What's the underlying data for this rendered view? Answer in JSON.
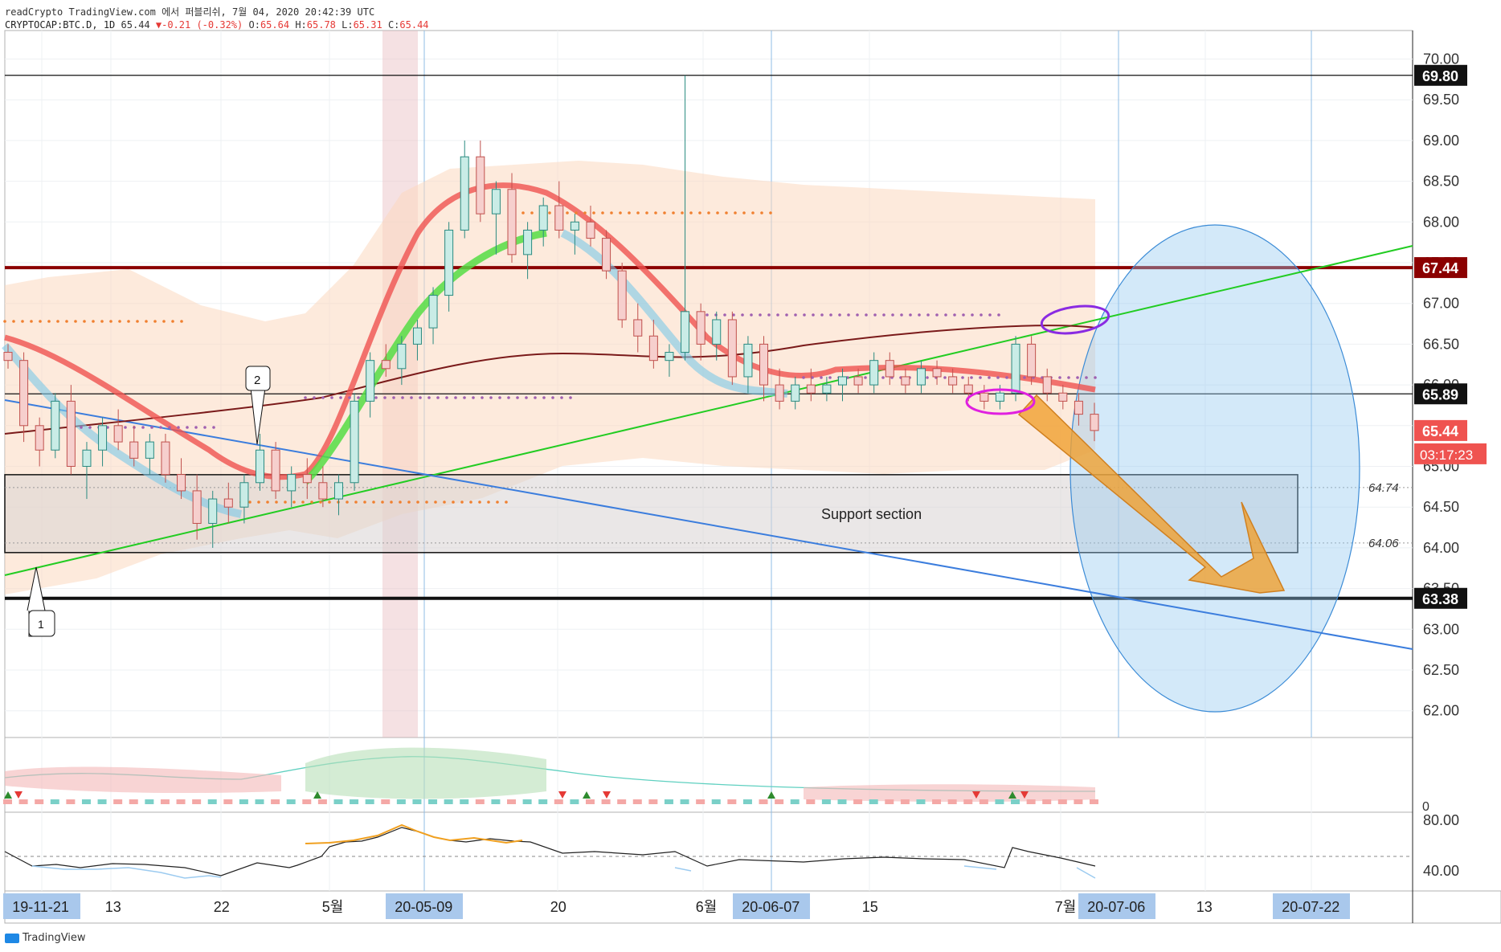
{
  "header": {
    "line1": "readCrypto TradingView.com 에서 퍼블리쉬, 7월 04, 2020 20:42:39 UTC",
    "symbol": "CRYPTOCAP:BTC.D, 1D",
    "last": "65.44",
    "change_arrow": "▼",
    "change": "-0.21 (-0.32%)",
    "o_label": "O:",
    "o": "65.64",
    "h_label": "H:",
    "h": "65.78",
    "l_label": "L:",
    "l": "65.31",
    "c_label": "C:",
    "c": "65.44"
  },
  "footer": {
    "brand": "TradingView"
  },
  "colors": {
    "up": "#26a69a",
    "down": "#ef5350",
    "support_line": "#8b0000",
    "uptrend": "#22cc22",
    "downtrend": "#3b7ddd",
    "arrow": "#f0a030",
    "ellipse": "#90c8f0",
    "purple": "#8a2be2",
    "magenta": "#e020e0"
  },
  "chart_data": {
    "type": "candlestick",
    "symbol": "CRYPTOCAP:BTC.D",
    "interval": "1D",
    "price_axis": {
      "range": [
        61.7,
        70.2
      ],
      "ticks": [
        "70.00",
        "69.50",
        "69.00",
        "68.50",
        "68.00",
        "67.50",
        "67.00",
        "66.50",
        "66.00",
        "65.50",
        "65.00",
        "64.50",
        "64.00",
        "63.50",
        "63.00",
        "62.50",
        "62.00"
      ],
      "labels": [
        {
          "value": 69.8,
          "text": "69.80",
          "style": "black"
        },
        {
          "value": 67.44,
          "text": "67.44",
          "style": "darkred"
        },
        {
          "value": 65.89,
          "text": "65.89",
          "style": "black"
        },
        {
          "value": 65.44,
          "text": "65.44",
          "style": "red"
        },
        {
          "value": 63.38,
          "text": "63.38",
          "style": "black"
        }
      ],
      "countdown": "03:17:23",
      "plain_labels": [
        {
          "value": 64.74,
          "text": "64.74"
        },
        {
          "value": 64.06,
          "text": "64.06"
        }
      ]
    },
    "time_axis": [
      {
        "text": "19-11-21",
        "highlight": true
      },
      {
        "text": "13",
        "highlight": false
      },
      {
        "text": "22",
        "highlight": false
      },
      {
        "text": "5월",
        "highlight": false
      },
      {
        "text": "20-05-09",
        "highlight": true
      },
      {
        "text": "20",
        "highlight": false
      },
      {
        "text": "6월",
        "highlight": false
      },
      {
        "text": "20-06-07",
        "highlight": true
      },
      {
        "text": "15",
        "highlight": false
      },
      {
        "text": "7월",
        "highlight": false
      },
      {
        "text": "20-07-06",
        "highlight": true
      },
      {
        "text": "13",
        "highlight": false
      },
      {
        "text": "20-07-22",
        "highlight": true
      }
    ],
    "candles": [
      [
        66.4,
        66.5,
        66.2,
        66.3
      ],
      [
        66.3,
        66.4,
        65.3,
        65.5
      ],
      [
        65.5,
        65.6,
        65.0,
        65.2
      ],
      [
        65.2,
        65.9,
        65.1,
        65.8
      ],
      [
        65.8,
        66.0,
        64.9,
        65.0
      ],
      [
        65.0,
        65.3,
        64.6,
        65.2
      ],
      [
        65.2,
        65.6,
        65.0,
        65.5
      ],
      [
        65.5,
        65.7,
        65.2,
        65.3
      ],
      [
        65.3,
        65.5,
        65.0,
        65.1
      ],
      [
        65.1,
        65.4,
        64.9,
        65.3
      ],
      [
        65.3,
        65.4,
        64.8,
        64.9
      ],
      [
        64.9,
        65.1,
        64.6,
        64.7
      ],
      [
        64.7,
        64.9,
        64.1,
        64.3
      ],
      [
        64.3,
        64.7,
        64.0,
        64.6
      ],
      [
        64.6,
        64.8,
        64.3,
        64.5
      ],
      [
        64.5,
        64.9,
        64.3,
        64.8
      ],
      [
        64.8,
        65.4,
        64.7,
        65.2
      ],
      [
        65.2,
        65.3,
        64.6,
        64.7
      ],
      [
        64.7,
        65.0,
        64.5,
        64.9
      ],
      [
        64.9,
        65.1,
        64.6,
        64.8
      ],
      [
        64.8,
        65.0,
        64.5,
        64.6
      ],
      [
        64.6,
        64.9,
        64.4,
        64.8
      ],
      [
        64.8,
        65.9,
        64.7,
        65.8
      ],
      [
        65.8,
        66.4,
        65.6,
        66.3
      ],
      [
        66.3,
        66.5,
        66.1,
        66.2
      ],
      [
        66.2,
        66.6,
        66.0,
        66.5
      ],
      [
        66.5,
        66.8,
        66.3,
        66.7
      ],
      [
        66.7,
        67.2,
        66.5,
        67.1
      ],
      [
        67.1,
        68.0,
        66.9,
        67.9
      ],
      [
        67.9,
        69.0,
        67.8,
        68.8
      ],
      [
        68.8,
        69.0,
        68.0,
        68.1
      ],
      [
        68.1,
        68.5,
        67.6,
        68.4
      ],
      [
        68.4,
        68.6,
        67.5,
        67.6
      ],
      [
        67.6,
        68.0,
        67.3,
        67.9
      ],
      [
        67.9,
        68.3,
        67.7,
        68.2
      ],
      [
        68.2,
        68.5,
        67.8,
        67.9
      ],
      [
        67.9,
        68.1,
        67.6,
        68.0
      ],
      [
        68.0,
        68.2,
        67.7,
        67.8
      ],
      [
        67.8,
        67.9,
        67.3,
        67.4
      ],
      [
        67.4,
        67.5,
        66.7,
        66.8
      ],
      [
        66.8,
        67.0,
        66.4,
        66.6
      ],
      [
        66.6,
        66.8,
        66.2,
        66.3
      ],
      [
        66.3,
        66.5,
        66.1,
        66.4
      ],
      [
        66.4,
        69.8,
        66.3,
        66.9
      ],
      [
        66.9,
        67.0,
        66.3,
        66.5
      ],
      [
        66.5,
        66.9,
        66.3,
        66.8
      ],
      [
        66.8,
        66.9,
        66.0,
        66.1
      ],
      [
        66.1,
        66.6,
        65.9,
        66.5
      ],
      [
        66.5,
        66.6,
        65.8,
        66.0
      ],
      [
        66.0,
        66.2,
        65.7,
        65.8
      ],
      [
        65.8,
        66.1,
        65.7,
        66.0
      ],
      [
        66.0,
        66.2,
        65.8,
        65.9
      ],
      [
        65.9,
        66.1,
        65.8,
        66.0
      ],
      [
        66.0,
        66.2,
        65.8,
        66.1
      ],
      [
        66.1,
        66.2,
        65.9,
        66.0
      ],
      [
        66.0,
        66.4,
        65.9,
        66.3
      ],
      [
        66.3,
        66.4,
        66.0,
        66.1
      ],
      [
        66.1,
        66.2,
        65.9,
        66.0
      ],
      [
        66.0,
        66.3,
        65.9,
        66.2
      ],
      [
        66.2,
        66.3,
        66.0,
        66.1
      ],
      [
        66.1,
        66.2,
        65.9,
        66.0
      ],
      [
        66.0,
        66.1,
        65.8,
        65.9
      ],
      [
        65.9,
        66.0,
        65.7,
        65.8
      ],
      [
        65.8,
        66.0,
        65.7,
        65.9
      ],
      [
        65.9,
        66.6,
        65.8,
        66.5
      ],
      [
        66.5,
        66.6,
        66.0,
        66.1
      ],
      [
        66.1,
        66.2,
        65.8,
        65.9
      ],
      [
        65.9,
        66.0,
        65.7,
        65.8
      ],
      [
        65.8,
        65.9,
        65.5,
        65.64
      ],
      [
        65.64,
        65.78,
        65.31,
        65.44
      ]
    ],
    "lines": [
      {
        "kind": "horizontal",
        "value": 69.8,
        "color": "black"
      },
      {
        "kind": "horizontal",
        "value": 67.44,
        "color": "darkred"
      },
      {
        "kind": "horizontal",
        "value": 65.89,
        "color": "black"
      },
      {
        "kind": "horizontal",
        "value": 63.38,
        "color": "black"
      }
    ],
    "annotations": {
      "support_box": {
        "text": "Support section",
        "range": [
          64.06,
          64.74
        ]
      },
      "callouts": [
        "1",
        "2"
      ],
      "oscillator_ticks": [
        "80.00",
        "40.00"
      ],
      "volume_tick": "0"
    }
  }
}
